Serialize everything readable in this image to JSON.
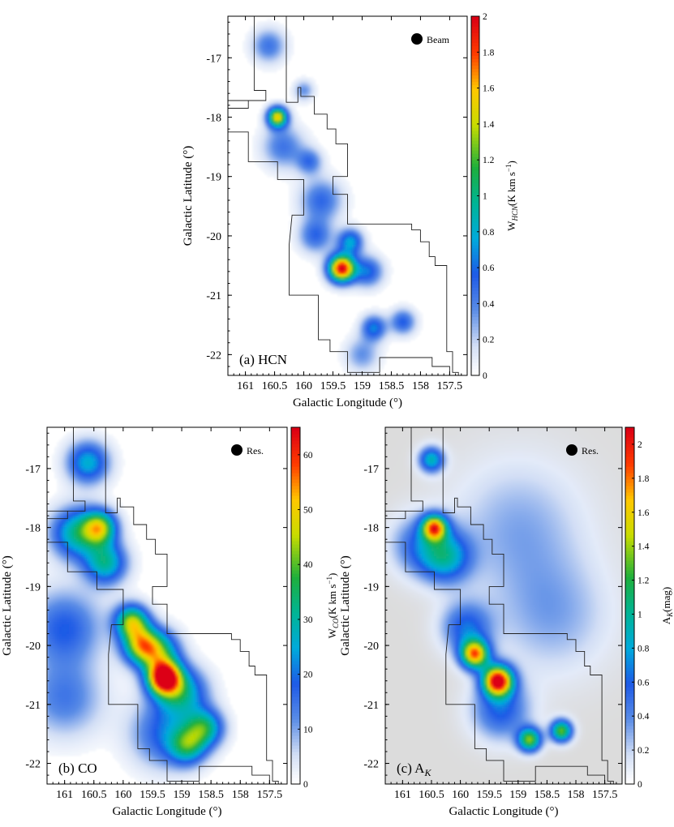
{
  "chart_data": [
    {
      "type": "heatmap",
      "panel_label": "(a) HCN",
      "xlabel": "Galactic Longitude (°)",
      "ylabel": "Galactic Latitude (°)",
      "colorbar_label": "W_HCN (K km s⁻¹)",
      "colorbar_label_parts": {
        "base": "W",
        "sub": "HCN",
        "unit": "(K km s",
        "sup": "−1",
        "close": ")"
      },
      "beam_label": "Beam",
      "xlim": [
        161.3,
        157.2
      ],
      "ylim": [
        -22.35,
        -16.3
      ],
      "xticks": [
        161,
        160.5,
        160,
        159.5,
        159,
        158.5,
        158,
        157.5
      ],
      "yticks": [
        -17,
        -18,
        -19,
        -20,
        -21,
        -22
      ],
      "colorbar_range": [
        0,
        2
      ],
      "colorbar_ticks": [
        0,
        0.2,
        0.4,
        0.6,
        0.8,
        1,
        1.2,
        1.4,
        1.6,
        1.8,
        2
      ],
      "background": "#ffffff",
      "features": [
        {
          "l": 159.35,
          "b": -20.55,
          "value": 2.0,
          "sigma": 0.16
        },
        {
          "l": 160.45,
          "b": -18.0,
          "value": 1.5,
          "sigma": 0.12
        },
        {
          "l": 160.35,
          "b": -18.5,
          "value": 0.45,
          "sigma": 0.25
        },
        {
          "l": 159.9,
          "b": -18.75,
          "value": 0.45,
          "sigma": 0.15
        },
        {
          "l": 159.7,
          "b": -19.4,
          "value": 0.5,
          "sigma": 0.25
        },
        {
          "l": 159.2,
          "b": -20.1,
          "value": 0.75,
          "sigma": 0.15
        },
        {
          "l": 159.8,
          "b": -20.0,
          "value": 0.5,
          "sigma": 0.2
        },
        {
          "l": 158.9,
          "b": -20.6,
          "value": 0.6,
          "sigma": 0.18
        },
        {
          "l": 158.8,
          "b": -21.55,
          "value": 0.65,
          "sigma": 0.15
        },
        {
          "l": 158.3,
          "b": -21.45,
          "value": 0.55,
          "sigma": 0.15
        },
        {
          "l": 160.6,
          "b": -16.8,
          "value": 0.45,
          "sigma": 0.2
        },
        {
          "l": 160.0,
          "b": -17.55,
          "value": 0.35,
          "sigma": 0.12
        },
        {
          "l": 159.0,
          "b": -22.0,
          "value": 0.35,
          "sigma": 0.2
        }
      ]
    },
    {
      "type": "heatmap",
      "panel_label": "(b) CO",
      "xlabel": "Galactic Longitude (°)",
      "ylabel": "Galactic Latitude (°)",
      "colorbar_label": "W_CO (K km s⁻¹)",
      "colorbar_label_parts": {
        "base": "W",
        "sub": "CO",
        "unit": "(K km s",
        "sup": "−1",
        "close": ")"
      },
      "beam_label": "Res.",
      "xlim": [
        161.3,
        157.2
      ],
      "ylim": [
        -22.35,
        -16.3
      ],
      "xticks": [
        161,
        160.5,
        160,
        159.5,
        159,
        158.5,
        158,
        157.5
      ],
      "yticks": [
        -17,
        -18,
        -19,
        -20,
        -21,
        -22
      ],
      "colorbar_range": [
        0,
        65
      ],
      "colorbar_ticks": [
        0,
        10,
        20,
        30,
        40,
        50,
        60
      ],
      "background": "#ffffff",
      "features": [
        {
          "l": 159.3,
          "b": -20.55,
          "value": 65,
          "sigma": 0.2
        },
        {
          "l": 160.4,
          "b": -18.0,
          "value": 40,
          "sigma": 0.2
        },
        {
          "l": 160.8,
          "b": -18.1,
          "value": 30,
          "sigma": 0.3
        },
        {
          "l": 160.3,
          "b": -18.6,
          "value": 30,
          "sigma": 0.25
        },
        {
          "l": 159.85,
          "b": -19.6,
          "value": 42,
          "sigma": 0.2
        },
        {
          "l": 159.7,
          "b": -20.0,
          "value": 38,
          "sigma": 0.22
        },
        {
          "l": 159.4,
          "b": -20.1,
          "value": 32,
          "sigma": 0.25
        },
        {
          "l": 159.0,
          "b": -20.8,
          "value": 28,
          "sigma": 0.3
        },
        {
          "l": 158.6,
          "b": -21.4,
          "value": 30,
          "sigma": 0.22
        },
        {
          "l": 158.9,
          "b": -21.7,
          "value": 28,
          "sigma": 0.22
        },
        {
          "l": 160.6,
          "b": -16.9,
          "value": 26,
          "sigma": 0.25
        },
        {
          "l": 161.0,
          "b": -19.7,
          "value": 18,
          "sigma": 0.45
        },
        {
          "l": 161.0,
          "b": -20.9,
          "value": 14,
          "sigma": 0.45
        },
        {
          "l": 159.3,
          "b": -21.5,
          "value": 18,
          "sigma": 0.4
        }
      ]
    },
    {
      "type": "heatmap",
      "panel_label": "(c) A_K",
      "panel_label_parts": {
        "base": "(c) A",
        "sub": "K"
      },
      "xlabel": "Galactic Longitude (°)",
      "ylabel": "Galactic Latitude (°)",
      "colorbar_label": "A_K (mag)",
      "colorbar_label_parts": {
        "base": "A",
        "sub": "K",
        "unit": "(mag)"
      },
      "beam_label": "Res.",
      "xlim": [
        161.3,
        157.2
      ],
      "ylim": [
        -22.35,
        -16.3
      ],
      "xticks": [
        161,
        160.5,
        160,
        159.5,
        159,
        158.5,
        158,
        157.5
      ],
      "yticks": [
        -17,
        -18,
        -19,
        -20,
        -21,
        -22
      ],
      "colorbar_range": [
        0,
        2.1
      ],
      "colorbar_ticks": [
        0,
        0.2,
        0.4,
        0.6,
        0.8,
        1,
        1.2,
        1.4,
        1.6,
        1.8,
        2
      ],
      "background": "#dcdcdc",
      "features": [
        {
          "l": 159.35,
          "b": -20.6,
          "value": 2.1,
          "sigma": 0.18
        },
        {
          "l": 160.45,
          "b": -18.0,
          "value": 1.6,
          "sigma": 0.15
        },
        {
          "l": 159.75,
          "b": -20.15,
          "value": 1.7,
          "sigma": 0.17
        },
        {
          "l": 158.8,
          "b": -21.6,
          "value": 1.3,
          "sigma": 0.14
        },
        {
          "l": 158.25,
          "b": -21.45,
          "value": 1.3,
          "sigma": 0.13
        },
        {
          "l": 160.5,
          "b": -16.85,
          "value": 0.9,
          "sigma": 0.15
        },
        {
          "l": 160.25,
          "b": -18.5,
          "value": 0.8,
          "sigma": 0.3
        },
        {
          "l": 159.9,
          "b": -19.7,
          "value": 0.6,
          "sigma": 0.3
        },
        {
          "l": 159.3,
          "b": -21.1,
          "value": 0.6,
          "sigma": 0.35
        },
        {
          "l": 160.7,
          "b": -18.3,
          "value": 0.5,
          "sigma": 0.35
        },
        {
          "l": 159.0,
          "b": -18.0,
          "value": 0.3,
          "sigma": 0.8
        },
        {
          "l": 158.4,
          "b": -19.5,
          "value": 0.3,
          "sigma": 0.7
        }
      ]
    }
  ]
}
